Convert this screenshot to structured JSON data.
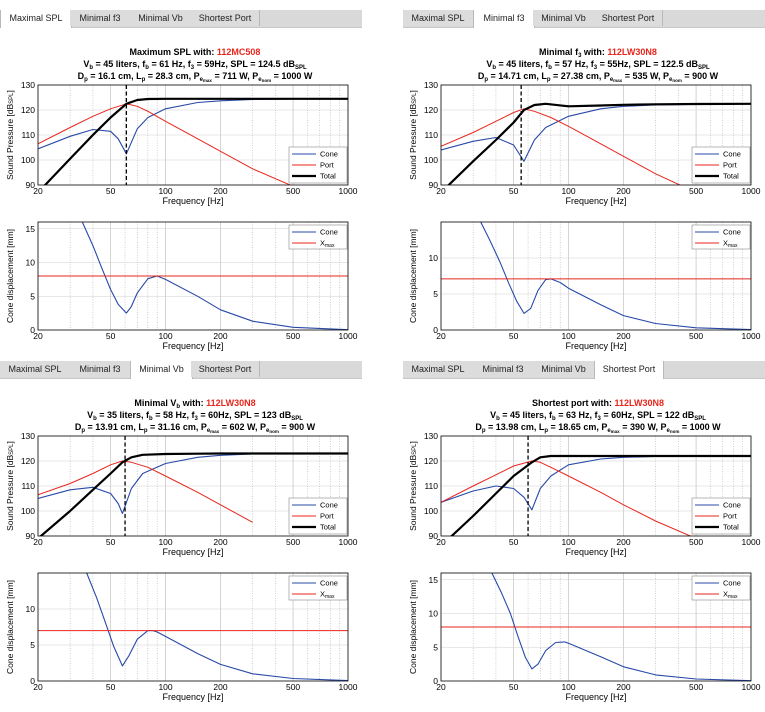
{
  "tabs": [
    "Maximal SPL",
    "Minimal f3",
    "Minimal Vb",
    "Shortest Port"
  ],
  "labels": {
    "spl_xlabel": "Frequency [Hz]",
    "spl_ylabel": "Sound Pressure [dB",
    "spl_ylabel_sub": "SPL",
    "disp_xlabel": "Frequency [Hz]",
    "disp_ylabel": "Cone displacement [mm]",
    "legend_cone": "Cone",
    "legend_port": "Port",
    "legend_total": "Total",
    "legend_xmax": "X",
    "legend_xmax_sub": "max"
  },
  "colors": {
    "cone": "#2949a8",
    "port": "#e8261d",
    "total": "#000000",
    "highlight": "#e8261d"
  },
  "panels": [
    {
      "active_tab": 0,
      "title_prefix": "Maximum  SPL  with:",
      "driver": "112MC508",
      "vb": "45",
      "fb": "61",
      "f3": "59",
      "spl": "124.5",
      "dp": "16.1",
      "lp": "28.3",
      "pemax": "711",
      "penom": "1000",
      "disp_ylim": [
        0,
        16
      ],
      "disp_yticks": [
        0,
        5,
        10,
        15
      ]
    },
    {
      "active_tab": 1,
      "title_prefix": "Minimal",
      "driver": "112LW30N8",
      "vb": "45",
      "fb": "57",
      "f3": "55",
      "spl": "122.5",
      "dp": "14.71",
      "lp": "27.38",
      "pemax": "535",
      "penom": "900",
      "disp_ylim": [
        0,
        15
      ],
      "disp_yticks": [
        0,
        5,
        10
      ]
    },
    {
      "active_tab": 2,
      "title_prefix": "Minimal",
      "driver": "112LW30N8",
      "vb": "35",
      "fb": "58",
      "f3": "60",
      "spl": "123",
      "dp": "13.91",
      "lp": "31.16",
      "pemax": "602",
      "penom": "900",
      "disp_ylim": [
        0,
        15
      ],
      "disp_yticks": [
        0,
        5,
        10
      ]
    },
    {
      "active_tab": 3,
      "title_prefix": "Shortest port with:",
      "driver": "112LW30N8",
      "vb": "45",
      "fb": "63",
      "f3": "60",
      "spl": "122",
      "dp": "13.98",
      "lp": "18.65",
      "pemax": "390",
      "penom": "1000",
      "disp_ylim": [
        0,
        16
      ],
      "disp_yticks": [
        0,
        5,
        10,
        15
      ]
    }
  ],
  "chart_data": [
    {
      "type": "line",
      "panel": 0,
      "chart": "spl",
      "xscale": "log",
      "xlim": [
        20,
        1000
      ],
      "ylim": [
        90,
        130
      ],
      "xticks": [
        20,
        50,
        100,
        200,
        500,
        1000
      ],
      "yticks": [
        90,
        100,
        110,
        120,
        130
      ],
      "xlabel": "Frequency [Hz]",
      "ylabel": "Sound Pressure [dBSPL]",
      "marker_x": 61,
      "series": [
        {
          "name": "Cone",
          "x": [
            20,
            30,
            40,
            50,
            55,
            61,
            70,
            80,
            100,
            150,
            200,
            300,
            500,
            1000
          ],
          "y": [
            104.5,
            109.5,
            112.2,
            111.5,
            108.5,
            102.5,
            112.5,
            117,
            120.5,
            123,
            123.7,
            124.2,
            124.4,
            124.5
          ]
        },
        {
          "name": "Port",
          "x": [
            20,
            30,
            40,
            50,
            61,
            70,
            80,
            100,
            150,
            200,
            300,
            500
          ],
          "y": [
            106.5,
            113,
            117.5,
            120.5,
            122.5,
            121.5,
            119.5,
            115.5,
            108.5,
            103.5,
            96.5,
            89.5
          ]
        },
        {
          "name": "Total",
          "x": [
            20,
            30,
            40,
            50,
            61,
            70,
            80,
            100,
            150,
            200,
            300,
            500,
            1000
          ],
          "y": [
            87,
            100.5,
            110,
            117,
            122.5,
            124,
            124.4,
            124.5,
            124.5,
            124.5,
            124.5,
            124.5,
            124.5
          ]
        }
      ]
    },
    {
      "type": "line",
      "panel": 0,
      "chart": "displacement",
      "xscale": "log",
      "xlim": [
        20,
        1000
      ],
      "ylim": [
        0,
        16
      ],
      "xticks": [
        20,
        50,
        100,
        200,
        500,
        1000
      ],
      "yticks": [
        0,
        5,
        10,
        15
      ],
      "xlabel": "Frequency [Hz]",
      "ylabel": "Cone displacement [mm]",
      "series": [
        {
          "name": "Cone",
          "x": [
            35,
            40,
            45,
            50,
            55,
            61,
            65,
            70,
            80,
            90,
            100,
            150,
            200,
            300,
            500,
            1000
          ],
          "y": [
            16,
            12.5,
            9,
            6,
            3.8,
            2.5,
            3.5,
            5.5,
            7.6,
            8,
            7.5,
            5,
            3,
            1.3,
            0.4,
            0.05
          ]
        },
        {
          "name": "Xmax",
          "x": [
            20,
            1000
          ],
          "y": [
            8,
            8
          ]
        }
      ]
    },
    {
      "type": "line",
      "panel": 1,
      "chart": "spl",
      "xscale": "log",
      "xlim": [
        20,
        1000
      ],
      "ylim": [
        90,
        130
      ],
      "xticks": [
        20,
        50,
        100,
        200,
        500,
        1000
      ],
      "yticks": [
        90,
        100,
        110,
        120,
        130
      ],
      "xlabel": "Frequency [Hz]",
      "ylabel": "Sound Pressure [dBSPL]",
      "marker_x": 55,
      "series": [
        {
          "name": "Cone",
          "x": [
            20,
            30,
            40,
            50,
            57,
            65,
            75,
            100,
            150,
            200,
            300,
            500,
            1000
          ],
          "y": [
            104,
            107.5,
            109,
            106,
            99.5,
            108,
            113,
            117.5,
            120.5,
            121.5,
            122,
            122.3,
            122.5
          ]
        },
        {
          "name": "Port",
          "x": [
            20,
            30,
            40,
            50,
            57,
            65,
            80,
            100,
            150,
            200,
            300,
            500
          ],
          "y": [
            105.5,
            111,
            115.5,
            119,
            120.5,
            119.5,
            117,
            113.5,
            106.5,
            101.5,
            94.5,
            87
          ]
        },
        {
          "name": "Total",
          "x": [
            20,
            30,
            40,
            50,
            57,
            65,
            75,
            100,
            150,
            200,
            300,
            500,
            1000
          ],
          "y": [
            87,
            99.5,
            108,
            115,
            120,
            122,
            122.5,
            121.5,
            121.8,
            122.1,
            122.3,
            122.4,
            122.5
          ]
        }
      ]
    },
    {
      "type": "line",
      "panel": 1,
      "chart": "displacement",
      "xscale": "log",
      "xlim": [
        20,
        1000
      ],
      "ylim": [
        0,
        15
      ],
      "xticks": [
        20,
        50,
        100,
        200,
        500,
        1000
      ],
      "yticks": [
        0,
        5,
        10
      ],
      "xlabel": "Frequency [Hz]",
      "ylabel": "Cone displacement [mm]",
      "series": [
        {
          "name": "Cone",
          "x": [
            33,
            37,
            42,
            47,
            52,
            57,
            62,
            68,
            75,
            80,
            90,
            100,
            150,
            200,
            300,
            500,
            1000
          ],
          "y": [
            15,
            12.5,
            9.5,
            6.5,
            4,
            2.3,
            3,
            5.5,
            7,
            7.1,
            6.6,
            5.8,
            3.5,
            2,
            0.9,
            0.3,
            0.05
          ]
        },
        {
          "name": "Xmax",
          "x": [
            20,
            1000
          ],
          "y": [
            7.1,
            7.1
          ]
        }
      ]
    },
    {
      "type": "line",
      "panel": 2,
      "chart": "spl",
      "xscale": "log",
      "xlim": [
        20,
        1000
      ],
      "ylim": [
        90,
        130
      ],
      "xticks": [
        20,
        50,
        100,
        200,
        500,
        1000
      ],
      "yticks": [
        90,
        100,
        110,
        120,
        130
      ],
      "xlabel": "Frequency [Hz]",
      "ylabel": "Sound Pressure [dBSPL]",
      "marker_x": 60,
      "series": [
        {
          "name": "Cone",
          "x": [
            20,
            30,
            40,
            50,
            55,
            58,
            65,
            75,
            100,
            150,
            200,
            300,
            500,
            1000
          ],
          "y": [
            105,
            108.5,
            109.5,
            107,
            103,
            99,
            109,
            115,
            119,
            121.5,
            122.3,
            122.8,
            123,
            123
          ]
        },
        {
          "name": "Port",
          "x": [
            20,
            30,
            40,
            50,
            58,
            65,
            80,
            100,
            150,
            200,
            300
          ],
          "y": [
            106.5,
            111,
            115,
            118.5,
            120,
            119.5,
            117.5,
            114,
            107.5,
            102.5,
            95.5
          ]
        },
        {
          "name": "Total",
          "x": [
            20,
            30,
            40,
            50,
            58,
            65,
            75,
            100,
            150,
            200,
            300,
            500,
            1000
          ],
          "y": [
            89,
            100,
            108.5,
            115,
            119.5,
            121.5,
            122.5,
            122.8,
            122.9,
            123,
            123,
            123,
            123
          ]
        }
      ]
    },
    {
      "type": "line",
      "panel": 2,
      "chart": "displacement",
      "xscale": "log",
      "xlim": [
        20,
        1000
      ],
      "ylim": [
        0,
        15
      ],
      "xticks": [
        20,
        50,
        100,
        200,
        500,
        1000
      ],
      "yticks": [
        0,
        5,
        10
      ],
      "xlabel": "Frequency [Hz]",
      "ylabel": "Cone displacement [mm]",
      "series": [
        {
          "name": "Cone",
          "x": [
            37,
            42,
            47,
            52,
            58,
            63,
            70,
            80,
            85,
            90,
            100,
            150,
            200,
            300,
            500,
            1000
          ],
          "y": [
            15,
            11.5,
            8,
            4.8,
            2.1,
            3.5,
            5.8,
            7,
            7,
            6.8,
            6.2,
            3.8,
            2.3,
            1,
            0.35,
            0.05
          ]
        },
        {
          "name": "Xmax",
          "x": [
            20,
            1000
          ],
          "y": [
            7,
            7
          ]
        }
      ]
    },
    {
      "type": "line",
      "panel": 3,
      "chart": "spl",
      "xscale": "log",
      "xlim": [
        20,
        1000
      ],
      "ylim": [
        90,
        130
      ],
      "xticks": [
        20,
        50,
        100,
        200,
        500,
        1000
      ],
      "yticks": [
        90,
        100,
        110,
        120,
        130
      ],
      "xlabel": "Frequency [Hz]",
      "ylabel": "Sound Pressure [dBSPL]",
      "marker_x": 60,
      "series": [
        {
          "name": "Cone",
          "x": [
            20,
            30,
            40,
            50,
            57,
            63,
            70,
            80,
            100,
            150,
            200,
            300,
            500,
            1000
          ],
          "y": [
            103.5,
            108,
            110,
            109,
            105.5,
            100.5,
            109,
            114,
            118.5,
            120.8,
            121.5,
            121.8,
            122,
            122
          ]
        },
        {
          "name": "Port",
          "x": [
            20,
            30,
            40,
            50,
            63,
            70,
            80,
            100,
            150,
            200,
            300,
            500
          ],
          "y": [
            103.5,
            110,
            114.5,
            118,
            120,
            119.5,
            117.5,
            114,
            107.5,
            102.5,
            96,
            89
          ]
        },
        {
          "name": "Total",
          "x": [
            20,
            30,
            40,
            50,
            63,
            70,
            80,
            100,
            150,
            200,
            300,
            500,
            1000
          ],
          "y": [
            86,
            98,
            107,
            114,
            119.5,
            121.5,
            122,
            122,
            122,
            122,
            122,
            122,
            122
          ]
        }
      ]
    },
    {
      "type": "line",
      "panel": 3,
      "chart": "displacement",
      "xscale": "log",
      "xlim": [
        20,
        1000
      ],
      "ylim": [
        0,
        16
      ],
      "xticks": [
        20,
        50,
        100,
        200,
        500,
        1000
      ],
      "yticks": [
        0,
        5,
        10,
        15
      ],
      "xlabel": "Frequency [Hz]",
      "ylabel": "Cone displacement [mm]",
      "series": [
        {
          "name": "Cone",
          "x": [
            38,
            43,
            48,
            53,
            58,
            63,
            68,
            75,
            85,
            95,
            100,
            150,
            200,
            300,
            500,
            1000
          ],
          "y": [
            16,
            13,
            10,
            6.5,
            3.5,
            1.8,
            2.5,
            4.5,
            5.7,
            5.8,
            5.6,
            3.6,
            2.1,
            0.9,
            0.3,
            0.05
          ]
        },
        {
          "name": "Xmax",
          "x": [
            20,
            1000
          ],
          "y": [
            8,
            8
          ]
        }
      ]
    }
  ]
}
